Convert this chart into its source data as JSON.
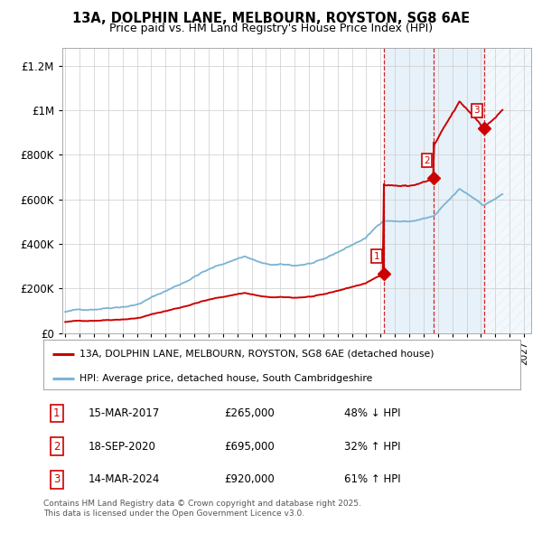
{
  "title_line1": "13A, DOLPHIN LANE, MELBOURN, ROYSTON, SG8 6AE",
  "title_line2": "Price paid vs. HM Land Registry's House Price Index (HPI)",
  "ytick_values": [
    0,
    200000,
    400000,
    600000,
    800000,
    1000000,
    1200000
  ],
  "ylim": [
    0,
    1280000
  ],
  "xlim_start": 1995.0,
  "xlim_end": 2027.5,
  "hpi_color": "#7ab3d4",
  "price_color": "#cc0000",
  "background_color": "#ffffff",
  "grid_color": "#cccccc",
  "legend_line1": "13A, DOLPHIN LANE, MELBOURN, ROYSTON, SG8 6AE (detached house)",
  "legend_line2": "HPI: Average price, detached house, South Cambridgeshire",
  "sales": [
    {
      "num": 1,
      "date": "15-MAR-2017",
      "price": 265000,
      "pct": "48%",
      "dir": "↓",
      "year": 2017.21
    },
    {
      "num": 2,
      "date": "18-SEP-2020",
      "price": 695000,
      "pct": "32%",
      "dir": "↑",
      "year": 2020.72
    },
    {
      "num": 3,
      "date": "14-MAR-2024",
      "price": 920000,
      "pct": "61%",
      "dir": "↑",
      "year": 2024.21
    }
  ],
  "footnote": "Contains HM Land Registry data © Crown copyright and database right 2025.\nThis data is licensed under the Open Government Licence v3.0.",
  "hatch_after": 2025.0,
  "shade_color": "#d0e4f5",
  "hpi_at_s1": 509615,
  "hpi_at_s2": 526515,
  "hpi_at_s3": 571429
}
